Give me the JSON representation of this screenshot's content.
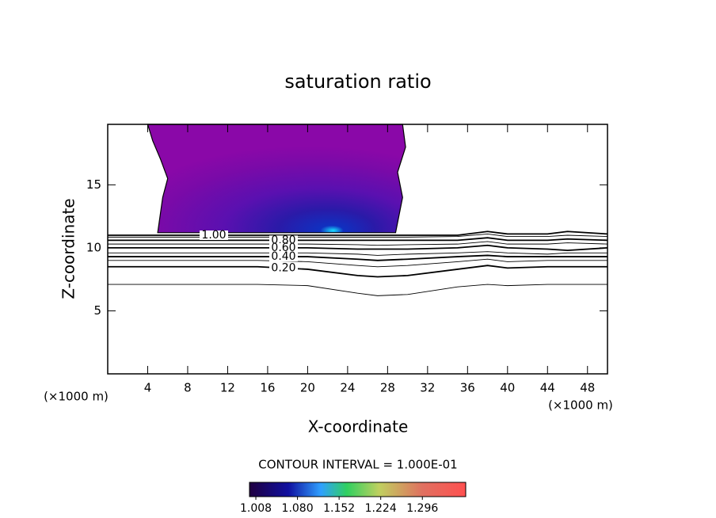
{
  "chart_data": {
    "type": "contour",
    "title": "saturation ratio",
    "x_label": "X-coordinate",
    "y_label": "Z-coordinate",
    "x_unit_labels": [
      "(×1000 m)",
      "(×1000 m)"
    ],
    "xlim": [
      0,
      50
    ],
    "ylim": [
      0,
      19.8
    ],
    "xticks": [
      4,
      8,
      12,
      16,
      20,
      24,
      28,
      32,
      36,
      40,
      44,
      48
    ],
    "yticks": [
      5,
      10,
      15
    ],
    "line_color": "#000000",
    "x": [
      0,
      5,
      10,
      15,
      20,
      25,
      27,
      30,
      35,
      38,
      40,
      44,
      46,
      50
    ],
    "series": [
      {
        "name": "1.00",
        "values": [
          11.0,
          11.0,
          11.0,
          11.0,
          11.0,
          11.0,
          11.0,
          11.0,
          11.0,
          11.3,
          11.1,
          11.1,
          11.3,
          11.1
        ]
      },
      {
        "values": [
          10.85,
          10.85,
          10.85,
          10.85,
          10.85,
          10.85,
          10.85,
          10.85,
          10.9,
          11.1,
          10.9,
          10.9,
          11.0,
          10.9
        ]
      },
      {
        "name": "0.80",
        "values": [
          10.6,
          10.6,
          10.6,
          10.6,
          10.6,
          10.6,
          10.6,
          10.6,
          10.6,
          10.8,
          10.6,
          10.6,
          10.7,
          10.6
        ]
      },
      {
        "values": [
          10.3,
          10.3,
          10.3,
          10.3,
          10.3,
          10.25,
          10.2,
          10.25,
          10.3,
          10.5,
          10.3,
          10.3,
          10.4,
          10.3
        ]
      },
      {
        "name": "0.60",
        "values": [
          10.0,
          10.0,
          10.0,
          10.0,
          10.0,
          9.9,
          9.9,
          9.9,
          10.0,
          10.2,
          10.0,
          9.9,
          9.8,
          10.0
        ]
      },
      {
        "values": [
          9.6,
          9.6,
          9.6,
          9.6,
          9.6,
          9.5,
          9.4,
          9.5,
          9.6,
          9.7,
          9.6,
          9.5,
          9.6,
          9.6
        ]
      },
      {
        "name": "0.40",
        "values": [
          9.3,
          9.3,
          9.3,
          9.3,
          9.3,
          9.1,
          9.0,
          9.1,
          9.3,
          9.4,
          9.3,
          9.3,
          9.3,
          9.3
        ]
      },
      {
        "values": [
          9.0,
          9.0,
          9.0,
          9.0,
          8.9,
          8.6,
          8.5,
          8.6,
          8.9,
          9.1,
          8.9,
          9.0,
          9.0,
          9.0
        ]
      },
      {
        "name": "0.20",
        "values": [
          8.5,
          8.5,
          8.5,
          8.5,
          8.3,
          7.8,
          7.7,
          7.8,
          8.3,
          8.6,
          8.4,
          8.5,
          8.5,
          8.5
        ]
      },
      {
        "values": [
          7.1,
          7.1,
          7.1,
          7.1,
          7.0,
          6.4,
          6.2,
          6.3,
          6.9,
          7.1,
          7.0,
          7.1,
          7.1,
          7.1
        ]
      }
    ],
    "filled_region": {
      "x": [
        4,
        4.5,
        5.3,
        6,
        5.5,
        5,
        28.8,
        29.5,
        29,
        29.8,
        29.5
      ],
      "values": [
        19.8,
        18.5,
        17,
        15.5,
        14,
        11.2,
        11.2,
        14,
        16,
        18,
        19.8
      ]
    },
    "contour_interval": "CONTOUR INTERVAL = 1.000E-01",
    "colorbar": {
      "lim": [
        0.997,
        1.371
      ],
      "ticks": [
        1.008,
        {
          "value": 1.08,
          "label": "1.080"
        },
        1.152,
        1.224,
        1.296
      ]
    }
  }
}
